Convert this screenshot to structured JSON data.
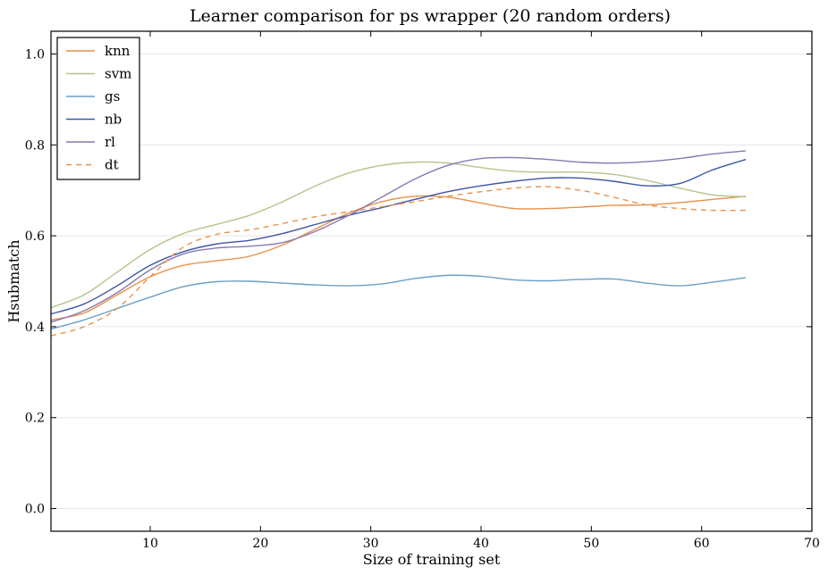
{
  "chart_data": {
    "type": "line",
    "title": "Learner comparison for ps wrapper (20 random orders)",
    "xlabel": "Size of training set",
    "ylabel": "Hsubmatch",
    "xlim": [
      1,
      70
    ],
    "ylim": [
      -0.05,
      1.05
    ],
    "xticks": [
      10,
      20,
      30,
      40,
      50,
      60,
      70
    ],
    "yticks": [
      0.0,
      0.2,
      0.4,
      0.6,
      0.8,
      1.0
    ],
    "xtick_labels": [
      "10",
      "20",
      "30",
      "40",
      "50",
      "60",
      "70"
    ],
    "ytick_labels": [
      "0.0",
      "0.2",
      "0.4",
      "0.6",
      "0.8",
      "1.0"
    ],
    "grid": "horizontal",
    "legend_position": "top-left",
    "series": [
      {
        "name": "knn",
        "color": "#e8914a",
        "dash": false,
        "x": [
          1,
          4,
          7,
          10,
          13,
          16,
          19,
          22,
          25,
          28,
          31,
          34,
          37,
          40,
          43,
          46,
          49,
          52,
          55,
          58,
          61,
          64
        ],
        "y": [
          0.415,
          0.43,
          0.47,
          0.51,
          0.535,
          0.545,
          0.555,
          0.58,
          0.615,
          0.65,
          0.675,
          0.687,
          0.685,
          0.672,
          0.66,
          0.66,
          0.663,
          0.667,
          0.668,
          0.673,
          0.68,
          0.687
        ]
      },
      {
        "name": "svm",
        "color": "#b5c48b",
        "dash": false,
        "x": [
          1,
          4,
          7,
          10,
          13,
          16,
          19,
          22,
          25,
          28,
          31,
          34,
          37,
          40,
          43,
          46,
          49,
          52,
          55,
          58,
          61,
          64
        ],
        "y": [
          0.442,
          0.47,
          0.52,
          0.57,
          0.605,
          0.625,
          0.645,
          0.675,
          0.71,
          0.738,
          0.755,
          0.762,
          0.76,
          0.75,
          0.742,
          0.74,
          0.74,
          0.735,
          0.722,
          0.705,
          0.69,
          0.686
        ]
      },
      {
        "name": "gs",
        "color": "#6a9fc7",
        "dash": false,
        "x": [
          1,
          4,
          7,
          10,
          13,
          16,
          19,
          22,
          25,
          28,
          31,
          34,
          37,
          40,
          43,
          46,
          49,
          52,
          55,
          58,
          61,
          64
        ],
        "y": [
          0.395,
          0.415,
          0.44,
          0.465,
          0.488,
          0.499,
          0.5,
          0.496,
          0.492,
          0.49,
          0.494,
          0.506,
          0.513,
          0.511,
          0.503,
          0.501,
          0.504,
          0.505,
          0.496,
          0.49,
          0.498,
          0.508
        ]
      },
      {
        "name": "nb",
        "color": "#3f56a4",
        "dash": false,
        "x": [
          1,
          4,
          7,
          10,
          13,
          16,
          19,
          22,
          25,
          28,
          31,
          34,
          37,
          40,
          43,
          46,
          49,
          52,
          55,
          58,
          61,
          64
        ],
        "y": [
          0.428,
          0.45,
          0.49,
          0.535,
          0.565,
          0.582,
          0.59,
          0.605,
          0.625,
          0.645,
          0.662,
          0.68,
          0.697,
          0.71,
          0.72,
          0.727,
          0.727,
          0.72,
          0.71,
          0.715,
          0.745,
          0.768
        ]
      },
      {
        "name": "rl",
        "color": "#8679b3",
        "dash": false,
        "x": [
          1,
          4,
          7,
          10,
          13,
          16,
          19,
          22,
          25,
          28,
          31,
          34,
          37,
          40,
          43,
          46,
          49,
          52,
          55,
          58,
          61,
          64
        ],
        "y": [
          0.41,
          0.435,
          0.475,
          0.525,
          0.56,
          0.573,
          0.577,
          0.585,
          0.61,
          0.645,
          0.685,
          0.725,
          0.755,
          0.77,
          0.772,
          0.768,
          0.762,
          0.76,
          0.763,
          0.77,
          0.78,
          0.787
        ]
      },
      {
        "name": "dt",
        "color": "#e8914a",
        "dash": true,
        "x": [
          1,
          4,
          7,
          10,
          13,
          16,
          19,
          22,
          25,
          28,
          31,
          34,
          37,
          40,
          43,
          46,
          49,
          52,
          55,
          58,
          61,
          64
        ],
        "y": [
          0.38,
          0.4,
          0.44,
          0.51,
          0.575,
          0.603,
          0.613,
          0.627,
          0.642,
          0.653,
          0.664,
          0.675,
          0.687,
          0.697,
          0.705,
          0.708,
          0.7,
          0.685,
          0.668,
          0.66,
          0.656,
          0.656
        ]
      }
    ]
  }
}
